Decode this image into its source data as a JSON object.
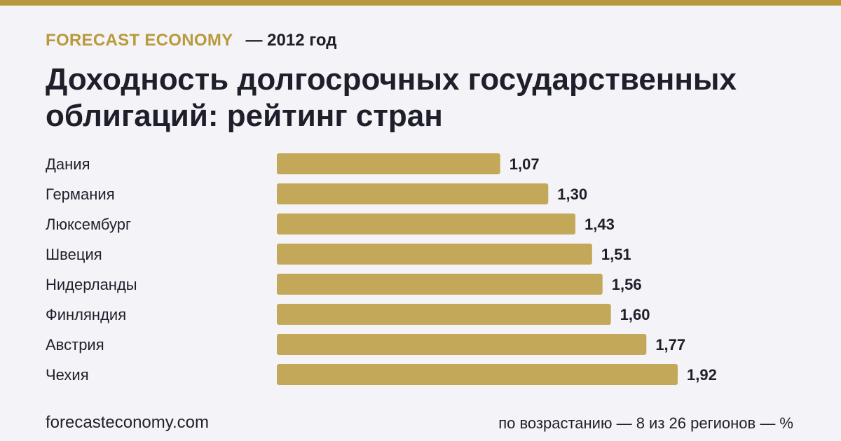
{
  "header": {
    "brand": "FORECAST ECONOMY",
    "period": "— 2012 год",
    "title": "Доходность долгосрочных государственных облигаций: рейтинг стран"
  },
  "footer": {
    "site": "forecasteconomy.com",
    "note": "по возрастанию — 8 из 26 регионов — %"
  },
  "colors": {
    "accent": "#b89a3c",
    "bar": "#c4a85a",
    "background": "#f4f4f8",
    "text": "#1f1f2b"
  },
  "chart_data": {
    "type": "bar",
    "orientation": "horizontal",
    "categories": [
      "Дания",
      "Германия",
      "Люксембург",
      "Швеция",
      "Нидерланды",
      "Финляндия",
      "Австрия",
      "Чехия"
    ],
    "values": [
      1.07,
      1.3,
      1.43,
      1.51,
      1.56,
      1.6,
      1.77,
      1.92
    ],
    "value_labels": [
      "1,07",
      "1,30",
      "1,43",
      "1,51",
      "1,56",
      "1,60",
      "1,77",
      "1,92"
    ],
    "xlim": [
      0,
      1.92
    ],
    "grid": false,
    "legend": "none"
  }
}
